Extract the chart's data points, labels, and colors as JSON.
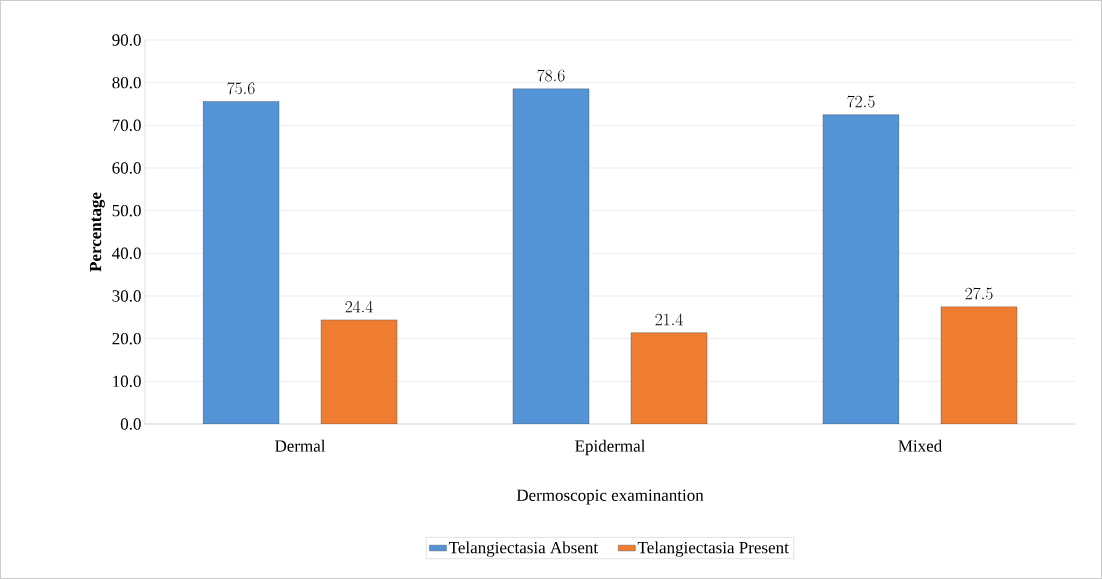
{
  "chart_data": {
    "type": "bar",
    "xlabel": "Dermoscopic  examinantion",
    "ylabel": "Percentage",
    "categories": [
      "Dermal",
      "Epidermal",
      "Mixed"
    ],
    "series": [
      {
        "name": "Telangiectasia Absent",
        "color": "#5393d6",
        "values": [
          75.6,
          78.6,
          72.5
        ]
      },
      {
        "name": "Telangiectasia Present",
        "color": "#ee7d32",
        "values": [
          24.4,
          21.4,
          27.5
        ]
      }
    ],
    "ylim": [
      0,
      90
    ],
    "yticks": [
      {
        "value": 0,
        "label": "0.0"
      },
      {
        "value": 10,
        "label": "10.0"
      },
      {
        "value": 20,
        "label": "20.0"
      },
      {
        "value": 30,
        "label": "30.0"
      },
      {
        "value": 40,
        "label": "40.0"
      },
      {
        "value": 50,
        "label": "50.0"
      },
      {
        "value": 60,
        "label": "60.0"
      },
      {
        "value": 70,
        "label": "70.0"
      },
      {
        "value": 80,
        "label": "80.0"
      },
      {
        "value": 90,
        "label": "90.0"
      }
    ],
    "grid": "y",
    "data_labels": true,
    "legend": "bottom"
  }
}
